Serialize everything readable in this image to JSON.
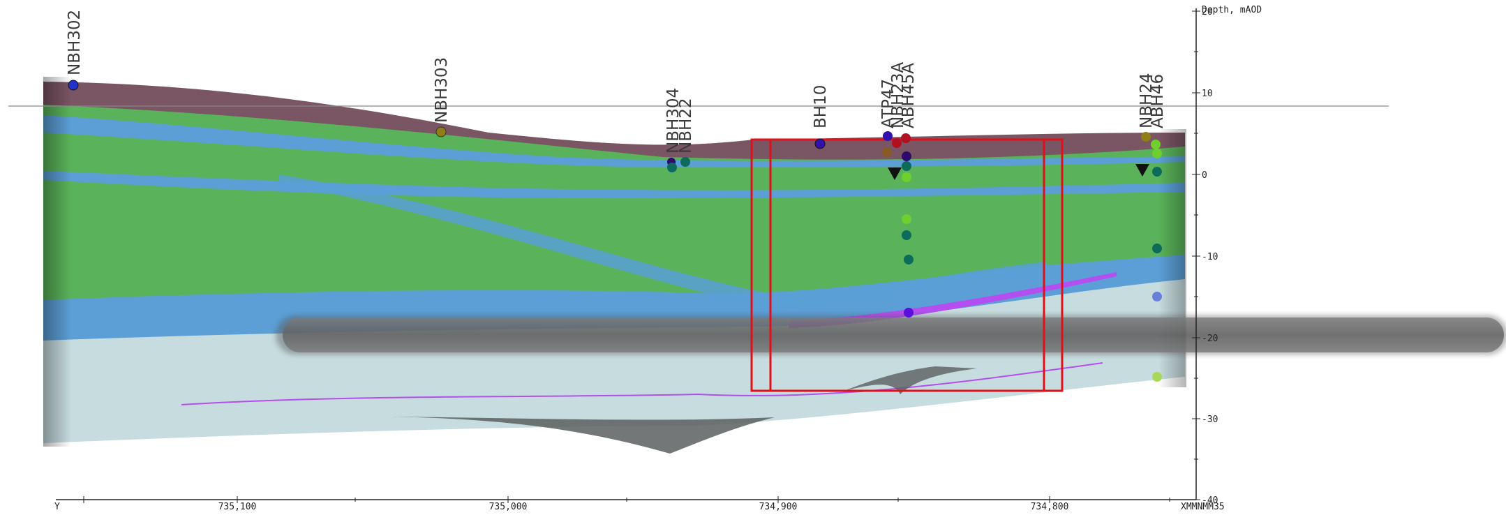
{
  "vertical_axis": {
    "title": "Depth, mAOD",
    "ticks": [
      {
        "value": 20,
        "label": "20"
      },
      {
        "value": 10,
        "label": "10"
      },
      {
        "value": 0,
        "label": "0"
      },
      {
        "value": -10,
        "label": "-10"
      },
      {
        "value": -20,
        "label": "-20"
      },
      {
        "value": -30,
        "label": "-30"
      },
      {
        "value": -40,
        "label": "-40"
      }
    ]
  },
  "horizontal_axis": {
    "start_label": "Y",
    "ticks": [
      {
        "value": 735100,
        "label": "735,100"
      },
      {
        "value": 735000,
        "label": "735,000"
      },
      {
        "value": 734900,
        "label": "734,900"
      },
      {
        "value": 734800,
        "label": "734,800"
      }
    ],
    "end_label": "XMMNMM35"
  },
  "boreholes": [
    {
      "id": "NBH302"
    },
    {
      "id": "NBH303"
    },
    {
      "id": "NBH304"
    },
    {
      "id": "NBH22"
    },
    {
      "id": "BH10"
    },
    {
      "id": "ATP47"
    },
    {
      "id": "NBH23A"
    },
    {
      "id": "ABH45A"
    },
    {
      "id": "NBH24"
    },
    {
      "id": "ABH46"
    }
  ],
  "colors": {
    "made_ground": "#7a5564",
    "clay": "#5ab35a",
    "sand": "#5b9fd6",
    "bedrock": "#c7dcdf",
    "marker_layer": "#b44ef0",
    "selection": "#e0101a"
  }
}
